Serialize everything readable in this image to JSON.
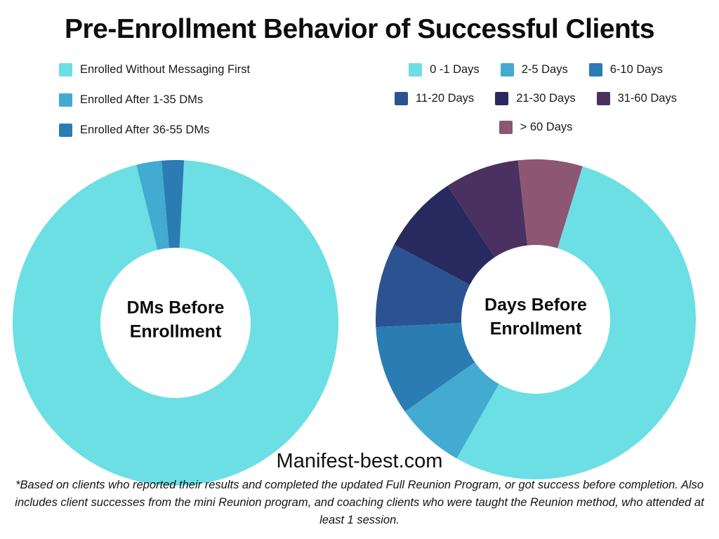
{
  "title": "Pre-Enrollment Behavior of Successful Clients",
  "branding": {
    "site": "Manifest-best.com"
  },
  "footnote": "*Based on clients who reported their results and completed the updated Full Reunion Program, or got success before completion. Also includes client successes from the mini Reunion program, and coaching clients who were taught the Reunion method, who attended at least 1 session.",
  "chart_data": [
    {
      "type": "pie",
      "subtype": "donut",
      "title": "DMs Before Enrollment",
      "legend_position": "top-left",
      "rotation_deg": 3,
      "segments": [
        {
          "label": "Enrolled Without Messaging First",
          "value": 95.3,
          "color": "#6BDFE3"
        },
        {
          "label": "Enrolled After 1-35 DMs",
          "value": 2.5,
          "color": "#43AAD1"
        },
        {
          "label": "Enrolled After 36-55 DMs",
          "value": 2.2,
          "color": "#2C7CB4"
        }
      ]
    },
    {
      "type": "pie",
      "subtype": "donut",
      "title": "Days Before Enrollment",
      "legend_position": "top-right",
      "rotation_deg": 17,
      "segments": [
        {
          "label": "0 -1 Days",
          "value": 53.5,
          "color": "#6BDFE3"
        },
        {
          "label": "2-5 Days",
          "value": 7,
          "color": "#43AAD1"
        },
        {
          "label": "6-10 Days",
          "value": 9,
          "color": "#2C7CB4"
        },
        {
          "label": "11-20 Days",
          "value": 8.5,
          "color": "#2C5391"
        },
        {
          "label": "21-30 Days",
          "value": 8,
          "color": "#282A5F"
        },
        {
          "label": "31-60 Days",
          "value": 7.5,
          "color": "#4A3161"
        },
        {
          "label": "> 60 Days",
          "value": 6.5,
          "color": "#8D5673"
        }
      ]
    }
  ]
}
